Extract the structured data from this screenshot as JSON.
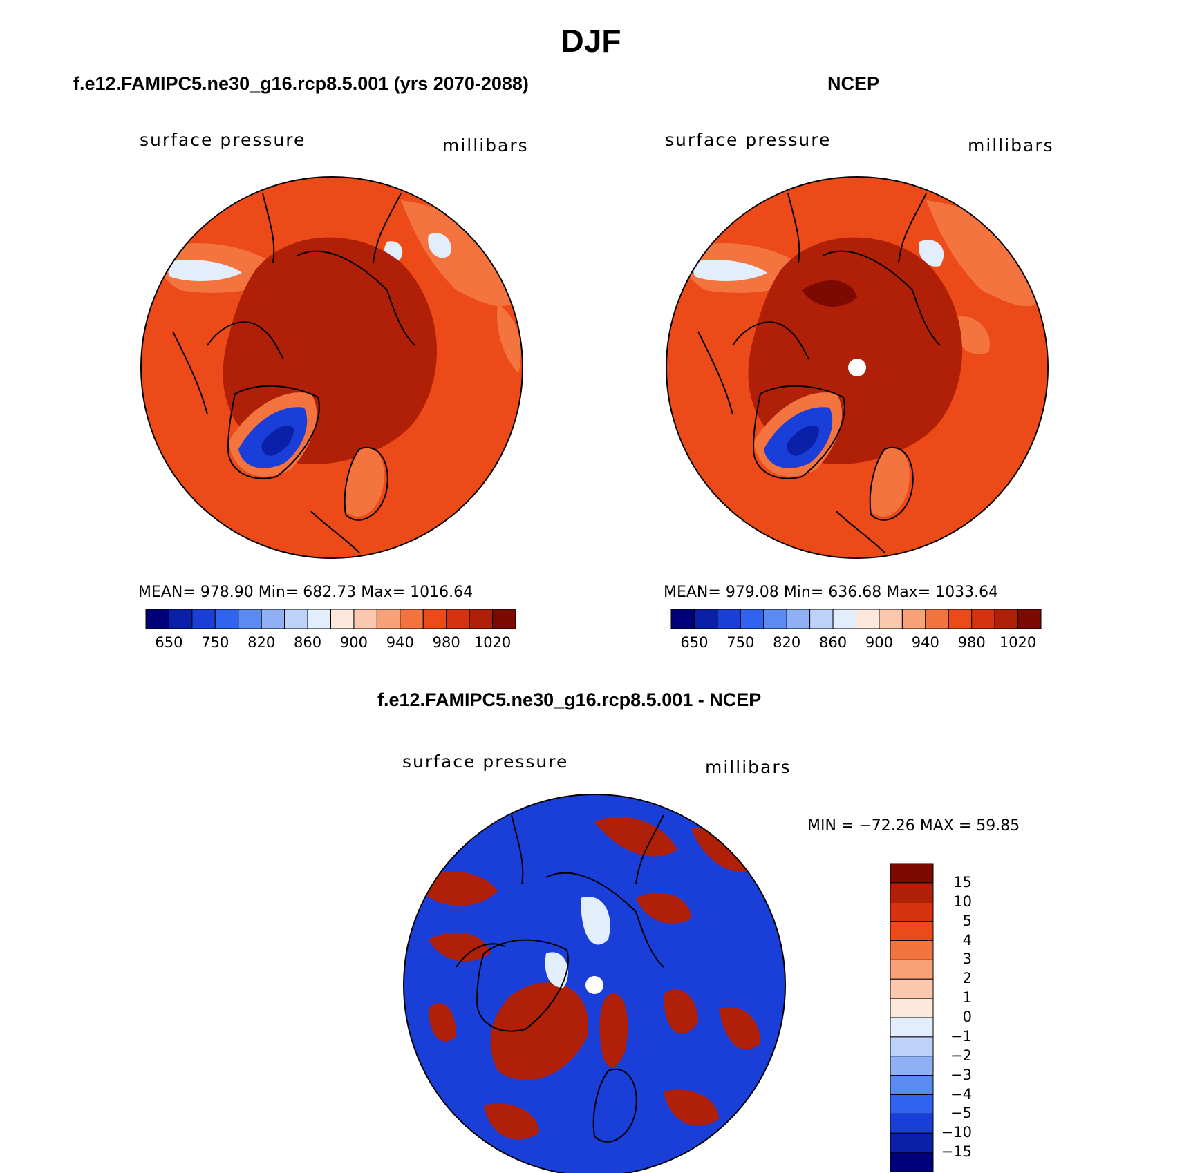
{
  "main_title": "DJF",
  "panels": [
    {
      "title": "f.e12.FAMIPC5.ne30_g16.rcp8.5.001 (yrs 2070-2088)",
      "variable": "surface pressure",
      "units": "millibars",
      "stats": "MEAN= 978.90   Min= 682.73   Max= 1016.64"
    },
    {
      "title": "NCEP",
      "variable": "surface pressure",
      "units": "millibars",
      "stats": "MEAN= 979.08   Min= 636.68   Max= 1033.64"
    },
    {
      "title": "f.e12.FAMIPC5.ne30_g16.rcp8.5.001 - NCEP",
      "variable": "surface pressure",
      "units": "millibars",
      "stats": "MIN = −72.26 MAX =   59.85"
    }
  ],
  "abs_colorbar": {
    "labels": [
      "650",
      "750",
      "820",
      "860",
      "900",
      "940",
      "980",
      "1020"
    ],
    "colors": [
      "#00007a",
      "#0a20a8",
      "#1a3fd8",
      "#2f63f0",
      "#5a8af2",
      "#8fb0f5",
      "#bcd2f8",
      "#e2eefb",
      "#fde9dc",
      "#fcc8ad",
      "#f9a27a",
      "#f47440",
      "#ec4a18",
      "#d6320f",
      "#b01f08",
      "#7d0a00"
    ]
  },
  "diff_colorbar": {
    "labels": [
      "15",
      "10",
      "5",
      "4",
      "3",
      "2",
      "1",
      "0",
      "−1",
      "−2",
      "−3",
      "−4",
      "−5",
      "−10",
      "−15"
    ],
    "colors": [
      "#7d0a00",
      "#b01f08",
      "#d6320f",
      "#ec4a18",
      "#f47440",
      "#f9a27a",
      "#fcc8ad",
      "#fde9dc",
      "#e2eefb",
      "#bcd2f8",
      "#8fb0f5",
      "#5a8af2",
      "#2f63f0",
      "#1a3fd8",
      "#0a20a8",
      "#00007a"
    ]
  },
  "map_colors": {
    "ocean_high": "#d6320f",
    "ocean_mid": "#ec4a18",
    "land_mid": "#f47440",
    "arctic": "#b01f08",
    "greenland": "#1a3fd8",
    "greenland_core": "#0a20a8",
    "plateau": "#e2eefb",
    "diff_pos": "#b01f08",
    "diff_neg": "#1a3fd8",
    "diff_neutral": "#e2eefb"
  }
}
